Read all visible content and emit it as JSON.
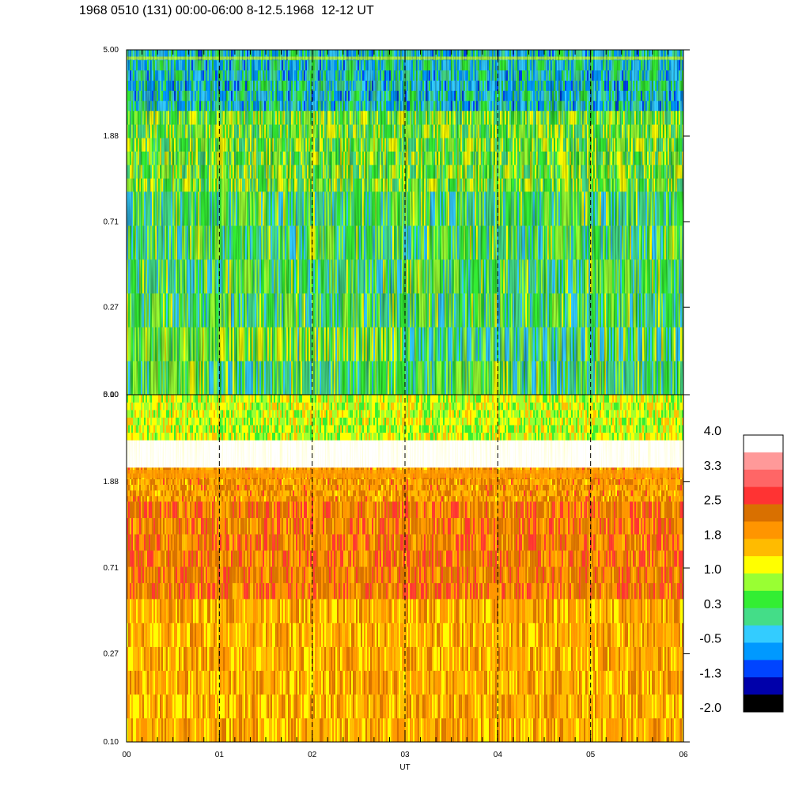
{
  "title": "1968 0510 (131) 00:00-06:00 8-12.5.1968  12-12 UT",
  "chart_data": {
    "type": "heatmap",
    "xlabel": "UT",
    "x_ticks": [
      "00",
      "01",
      "02",
      "03",
      "04",
      "05",
      "06"
    ],
    "x_range": [
      0,
      6
    ],
    "y_scale": "log",
    "y_ticks": [
      "0.10",
      "0.27",
      "0.71",
      "1.88",
      "5.00"
    ],
    "y_range": [
      0.1,
      5.0
    ],
    "grid": "dashed vertical lines at each hour",
    "colorbar": {
      "labels": [
        "4.0",
        "3.3",
        "2.5",
        "1.8",
        "1.0",
        "0.3",
        "-0.5",
        "-1.3",
        "-2.0"
      ],
      "colors": [
        "#ffffff",
        "#ff9999",
        "#ff6666",
        "#ff3333",
        "#d97000",
        "#ff9500",
        "#ffbb00",
        "#ffff00",
        "#99ff33",
        "#33ee33",
        "#44dd88",
        "#33ccff",
        "#0099ff",
        "#0044ff",
        "#0000aa",
        "#000000"
      ]
    },
    "panels": [
      {
        "name": "upper",
        "dominant_values": [
          {
            "y_range": [
              2.5,
              5.0
            ],
            "typical": -0.3,
            "note": "blue-green with streak near 4.5"
          },
          {
            "y_range": [
              1.0,
              2.5
            ],
            "typical": 0.6
          },
          {
            "y_range": [
              0.1,
              1.0
            ],
            "typical": 0.3
          }
        ]
      },
      {
        "name": "lower",
        "dominant_values": [
          {
            "y_range": [
              3.0,
              5.0
            ],
            "typical": 1.0
          },
          {
            "y_range": [
              1.5,
              2.2
            ],
            "typical": 2.0,
            "note": "orange band near 2.0"
          },
          {
            "y_range": [
              0.5,
              1.5
            ],
            "typical": 2.3
          },
          {
            "y_range": [
              0.1,
              0.5
            ],
            "typical": 1.8
          }
        ]
      }
    ]
  }
}
